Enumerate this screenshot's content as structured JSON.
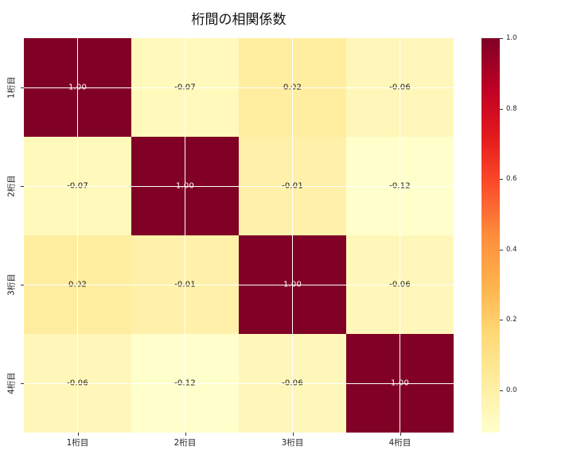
{
  "chart_data": {
    "type": "heatmap",
    "title": "桁間の相関係数",
    "x_labels": [
      "1桁目",
      "2桁目",
      "3桁目",
      "4桁目"
    ],
    "y_labels": [
      "1桁目",
      "2桁目",
      "3桁目",
      "4桁目"
    ],
    "matrix": [
      [
        1.0,
        -0.07,
        0.02,
        -0.06
      ],
      [
        -0.07,
        1.0,
        -0.01,
        -0.12
      ],
      [
        0.02,
        -0.01,
        1.0,
        -0.06
      ],
      [
        -0.06,
        -0.12,
        -0.06,
        1.0
      ]
    ],
    "matrix_labels": [
      [
        "1.00",
        "-0.07",
        "0.02",
        "-0.06"
      ],
      [
        "-0.07",
        "1.00",
        "-0.01",
        "-0.12"
      ],
      [
        "0.02",
        "-0.01",
        "1.00",
        "-0.06"
      ],
      [
        "-0.06",
        "-0.12",
        "-0.06",
        "1.00"
      ]
    ],
    "vmin": -0.12,
    "vmax": 1.0,
    "colormap": "YlOrRd",
    "colormap_stops": [
      "#ffffcc",
      "#ffeda0",
      "#fed976",
      "#feb24c",
      "#fd8d3c",
      "#fc4e2a",
      "#e31a1c",
      "#bd0026",
      "#800026"
    ],
    "grid": true,
    "grid_color": "#ffffff",
    "annotation_color_dark_cells": "#ffffff",
    "annotation_color_light_cells": "#1a1a1a",
    "colorbar": {
      "position": "right",
      "ticks": [
        {
          "label": "1.0",
          "value": 1.0
        },
        {
          "label": "0.8",
          "value": 0.8
        },
        {
          "label": "0.6",
          "value": 0.6
        },
        {
          "label": "0.4",
          "value": 0.4
        },
        {
          "label": "0.2",
          "value": 0.2
        },
        {
          "label": "0.0",
          "value": 0.0
        }
      ]
    }
  }
}
